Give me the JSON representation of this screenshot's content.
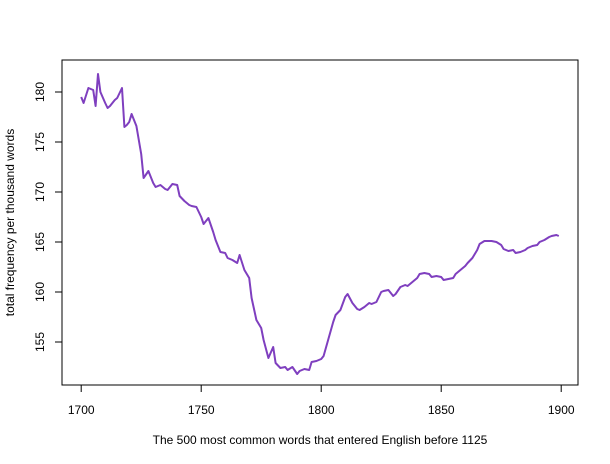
{
  "chart_data": {
    "type": "line",
    "x_label": "The 500 most common words that entered English before 1125",
    "y_label": "total frequency per thousand words",
    "x": [
      1700,
      1701,
      1703,
      1705,
      1706,
      1707,
      1708,
      1710,
      1711,
      1712,
      1714,
      1715,
      1717,
      1718,
      1719,
      1720,
      1721,
      1723,
      1725,
      1726,
      1728,
      1730,
      1731,
      1733,
      1735,
      1736,
      1738,
      1740,
      1741,
      1743,
      1745,
      1746,
      1748,
      1750,
      1751,
      1753,
      1755,
      1756,
      1758,
      1760,
      1761,
      1763,
      1765,
      1766,
      1768,
      1770,
      1771,
      1773,
      1775,
      1776,
      1778,
      1780,
      1781,
      1783,
      1785,
      1786,
      1788,
      1790,
      1791,
      1793,
      1795,
      1796,
      1798,
      1800,
      1801,
      1803,
      1805,
      1806,
      1808,
      1810,
      1811,
      1813,
      1815,
      1816,
      1818,
      1820,
      1821,
      1823,
      1825,
      1826,
      1828,
      1830,
      1831,
      1833,
      1835,
      1836,
      1838,
      1840,
      1841,
      1843,
      1845,
      1846,
      1848,
      1850,
      1851,
      1853,
      1855,
      1856,
      1858,
      1860,
      1861,
      1863,
      1865,
      1866,
      1868,
      1870,
      1871,
      1873,
      1875,
      1876,
      1878,
      1880,
      1881,
      1883,
      1885,
      1886,
      1888,
      1890,
      1891,
      1893,
      1895,
      1896,
      1898,
      1899
    ],
    "series": [
      {
        "color": "#7f3fbf",
        "values": [
          179.5,
          178.9,
          180.4,
          180.2,
          178.6,
          181.8,
          180,
          178.9,
          178.4,
          178.6,
          179.2,
          179.4,
          180.4,
          176.5,
          176.7,
          177,
          177.8,
          176.6,
          173.8,
          171.4,
          172.1,
          170.9,
          170.5,
          170.7,
          170.3,
          170.2,
          170.8,
          170.7,
          169.6,
          169.1,
          168.7,
          168.6,
          168.5,
          167.5,
          166.8,
          167.4,
          166,
          165.2,
          164,
          163.9,
          163.4,
          163.2,
          162.9,
          163.7,
          162.2,
          161.4,
          159.4,
          157.2,
          156.4,
          155.2,
          153.4,
          154.5,
          152.9,
          152.4,
          152.5,
          152.2,
          152.5,
          151.8,
          152.1,
          152.3,
          152.2,
          153,
          153.1,
          153.3,
          153.6,
          155.3,
          157,
          157.7,
          158.2,
          159.5,
          159.8,
          158.9,
          158.3,
          158.2,
          158.5,
          158.9,
          158.8,
          159,
          160,
          160.1,
          160.2,
          159.6,
          159.8,
          160.5,
          160.7,
          160.6,
          161,
          161.4,
          161.8,
          161.9,
          161.8,
          161.5,
          161.6,
          161.5,
          161.2,
          161.3,
          161.4,
          161.8,
          162.2,
          162.6,
          162.9,
          163.4,
          164.2,
          164.8,
          165.1,
          165.1,
          165.1,
          165,
          164.7,
          164.3,
          164.1,
          164.2,
          163.9,
          164,
          164.2,
          164.4,
          164.6,
          164.7,
          165,
          165.2,
          165.5,
          165.6,
          165.7,
          165.6
        ]
      }
    ],
    "xlim": [
      1692,
      1907
    ],
    "xticks": [
      1700,
      1750,
      1800,
      1850,
      1900
    ],
    "ylim": [
      150.7,
      183.2
    ],
    "yticks": [
      155,
      160,
      165,
      170,
      175,
      180
    ]
  }
}
